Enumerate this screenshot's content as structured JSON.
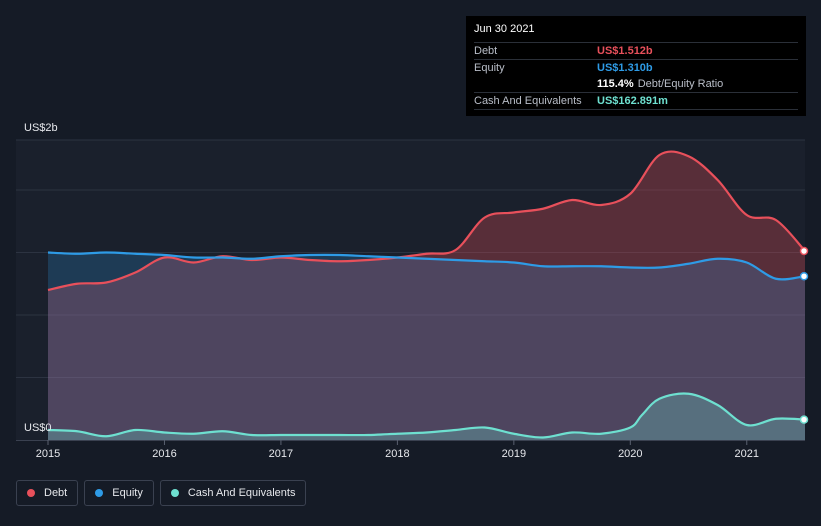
{
  "tooltip": {
    "date": "Jun 30 2021",
    "debt_label": "Debt",
    "debt_value": "US$1.512b",
    "equity_label": "Equity",
    "equity_value": "US$1.310b",
    "ratio_value": "115.4%",
    "ratio_label": "Debt/Equity Ratio",
    "cash_label": "Cash And Equivalents",
    "cash_value": "US$162.891m"
  },
  "legend": {
    "debt": "Debt",
    "equity": "Equity",
    "cash": "Cash And Equivalents"
  },
  "colors": {
    "debt": "#e8505b",
    "equity": "#2e9be6",
    "cash": "#6ee0d0",
    "background": "#151b26",
    "plot": "#1a202c"
  },
  "chart_data": {
    "type": "area",
    "title": "",
    "ylabel_top": "US$2b",
    "ylabel_bottom": "US$0",
    "ylim": [
      0,
      2.4
    ],
    "xlim": [
      2015.0,
      2021.5
    ],
    "xticks": [
      "2015",
      "2016",
      "2017",
      "2018",
      "2019",
      "2020",
      "2021"
    ],
    "xtick_values": [
      2015,
      2016,
      2017,
      2018,
      2019,
      2020,
      2021
    ],
    "series": [
      {
        "name": "Debt",
        "x": [
          2015.0,
          2015.25,
          2015.5,
          2015.75,
          2016.0,
          2016.25,
          2016.5,
          2016.75,
          2017.0,
          2017.25,
          2017.5,
          2017.75,
          2018.0,
          2018.25,
          2018.5,
          2018.75,
          2019.0,
          2019.25,
          2019.5,
          2019.75,
          2020.0,
          2020.25,
          2020.5,
          2020.75,
          2021.0,
          2021.25,
          2021.5
        ],
        "y": [
          1.2,
          1.25,
          1.26,
          1.34,
          1.46,
          1.42,
          1.47,
          1.44,
          1.46,
          1.44,
          1.43,
          1.44,
          1.46,
          1.49,
          1.52,
          1.78,
          1.82,
          1.85,
          1.92,
          1.88,
          1.97,
          2.28,
          2.27,
          2.08,
          1.8,
          1.76,
          1.512
        ]
      },
      {
        "name": "Equity",
        "x": [
          2015.0,
          2015.25,
          2015.5,
          2015.75,
          2016.0,
          2016.25,
          2016.5,
          2016.75,
          2017.0,
          2017.25,
          2017.5,
          2017.75,
          2018.0,
          2018.25,
          2018.5,
          2018.75,
          2019.0,
          2019.25,
          2019.5,
          2019.75,
          2020.0,
          2020.25,
          2020.5,
          2020.75,
          2021.0,
          2021.25,
          2021.5
        ],
        "y": [
          1.5,
          1.49,
          1.5,
          1.49,
          1.48,
          1.46,
          1.46,
          1.45,
          1.47,
          1.48,
          1.48,
          1.47,
          1.46,
          1.45,
          1.44,
          1.43,
          1.42,
          1.39,
          1.39,
          1.39,
          1.38,
          1.38,
          1.41,
          1.45,
          1.42,
          1.29,
          1.31
        ]
      },
      {
        "name": "Cash And Equivalents",
        "x": [
          2015.0,
          2015.25,
          2015.5,
          2015.75,
          2016.0,
          2016.25,
          2016.5,
          2016.75,
          2017.0,
          2017.25,
          2017.5,
          2017.75,
          2018.0,
          2018.25,
          2018.5,
          2018.75,
          2019.0,
          2019.25,
          2019.5,
          2019.75,
          2020.0,
          2020.1,
          2020.25,
          2020.5,
          2020.75,
          2021.0,
          2021.25,
          2021.5
        ],
        "y": [
          0.08,
          0.07,
          0.03,
          0.08,
          0.06,
          0.05,
          0.07,
          0.04,
          0.04,
          0.04,
          0.04,
          0.04,
          0.05,
          0.06,
          0.08,
          0.1,
          0.05,
          0.02,
          0.06,
          0.05,
          0.1,
          0.2,
          0.33,
          0.37,
          0.28,
          0.12,
          0.17,
          0.163
        ]
      }
    ]
  }
}
